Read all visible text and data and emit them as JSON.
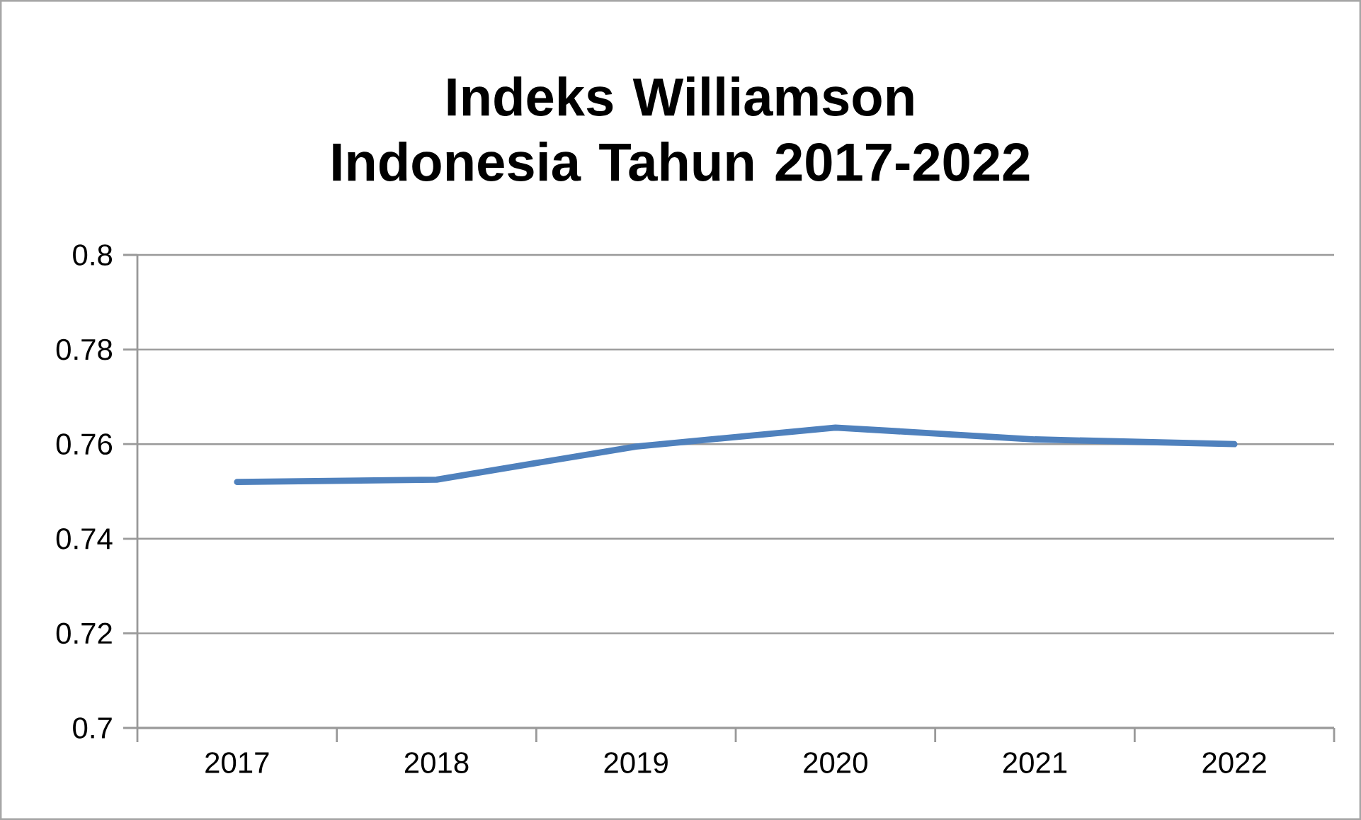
{
  "chart_data": {
    "type": "line",
    "title": "Indeks Williamson Indonesia Tahun 2017-2022",
    "categories": [
      "2017",
      "2018",
      "2019",
      "2020",
      "2021",
      "2022"
    ],
    "series": [
      {
        "color": "#4f81bd",
        "values": [
          0.752,
          0.7525,
          0.7595,
          0.7635,
          0.761,
          0.76
        ]
      }
    ],
    "ylim": [
      0.7,
      0.8
    ],
    "yticks": [
      0.7,
      0.72,
      0.74,
      0.76,
      0.78,
      0.8
    ],
    "grid": "y",
    "marker": "none",
    "line_style": "solid"
  }
}
